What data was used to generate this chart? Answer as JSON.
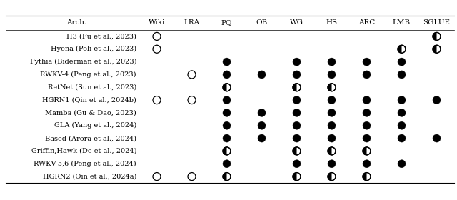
{
  "columns": [
    "Wiki",
    "LRA",
    "PQ",
    "OB",
    "WG",
    "HS",
    "ARC",
    "LMB",
    "SGLUE"
  ],
  "rows": [
    "H3 (Fu et al., 2023)",
    "Hyena (Poli et al., 2023)",
    "Pythia (Biderman et al., 2023)",
    "RWKV-4 (Peng et al., 2023)",
    "RetNet (Sun et al., 2023)",
    "HGRN1 (Qin et al., 2024b)",
    "Mamba (Gu & Dao, 2023)",
    "GLA (Yang et al., 2024)",
    "Based (Arora et al., 2024)",
    "Griffin,Hawk (De et al., 2024)",
    "RWKV-5,6 (Peng et al., 2024)",
    "HGRN2 (Qin et al., 2024a)"
  ],
  "data": [
    [
      0,
      null,
      null,
      null,
      null,
      null,
      null,
      null,
      0.5
    ],
    [
      0,
      null,
      null,
      null,
      null,
      null,
      null,
      0.5,
      0.5
    ],
    [
      null,
      null,
      1,
      null,
      1,
      1,
      1,
      1,
      null
    ],
    [
      null,
      0,
      1,
      1,
      1,
      1,
      1,
      1,
      null
    ],
    [
      null,
      null,
      0.5,
      null,
      0.5,
      0.5,
      null,
      null,
      null
    ],
    [
      0,
      0,
      1,
      null,
      1,
      1,
      1,
      1,
      1
    ],
    [
      null,
      null,
      1,
      1,
      1,
      1,
      1,
      1,
      null
    ],
    [
      null,
      null,
      1,
      1,
      1,
      1,
      1,
      1,
      null
    ],
    [
      null,
      null,
      1,
      1,
      1,
      1,
      1,
      1,
      1
    ],
    [
      null,
      null,
      0.5,
      null,
      0.5,
      0.5,
      0.5,
      null,
      null
    ],
    [
      null,
      null,
      1,
      null,
      1,
      1,
      1,
      1,
      null
    ],
    [
      0,
      0,
      0.5,
      null,
      0.5,
      0.5,
      0.5,
      null,
      null
    ]
  ],
  "bg_color": "#ffffff",
  "text_color": "#000000",
  "arch_label": "Arch.",
  "header_fontsize": 7.5,
  "row_fontsize": 7.0,
  "figwidth": 6.4,
  "figheight": 2.8,
  "dpi": 100
}
